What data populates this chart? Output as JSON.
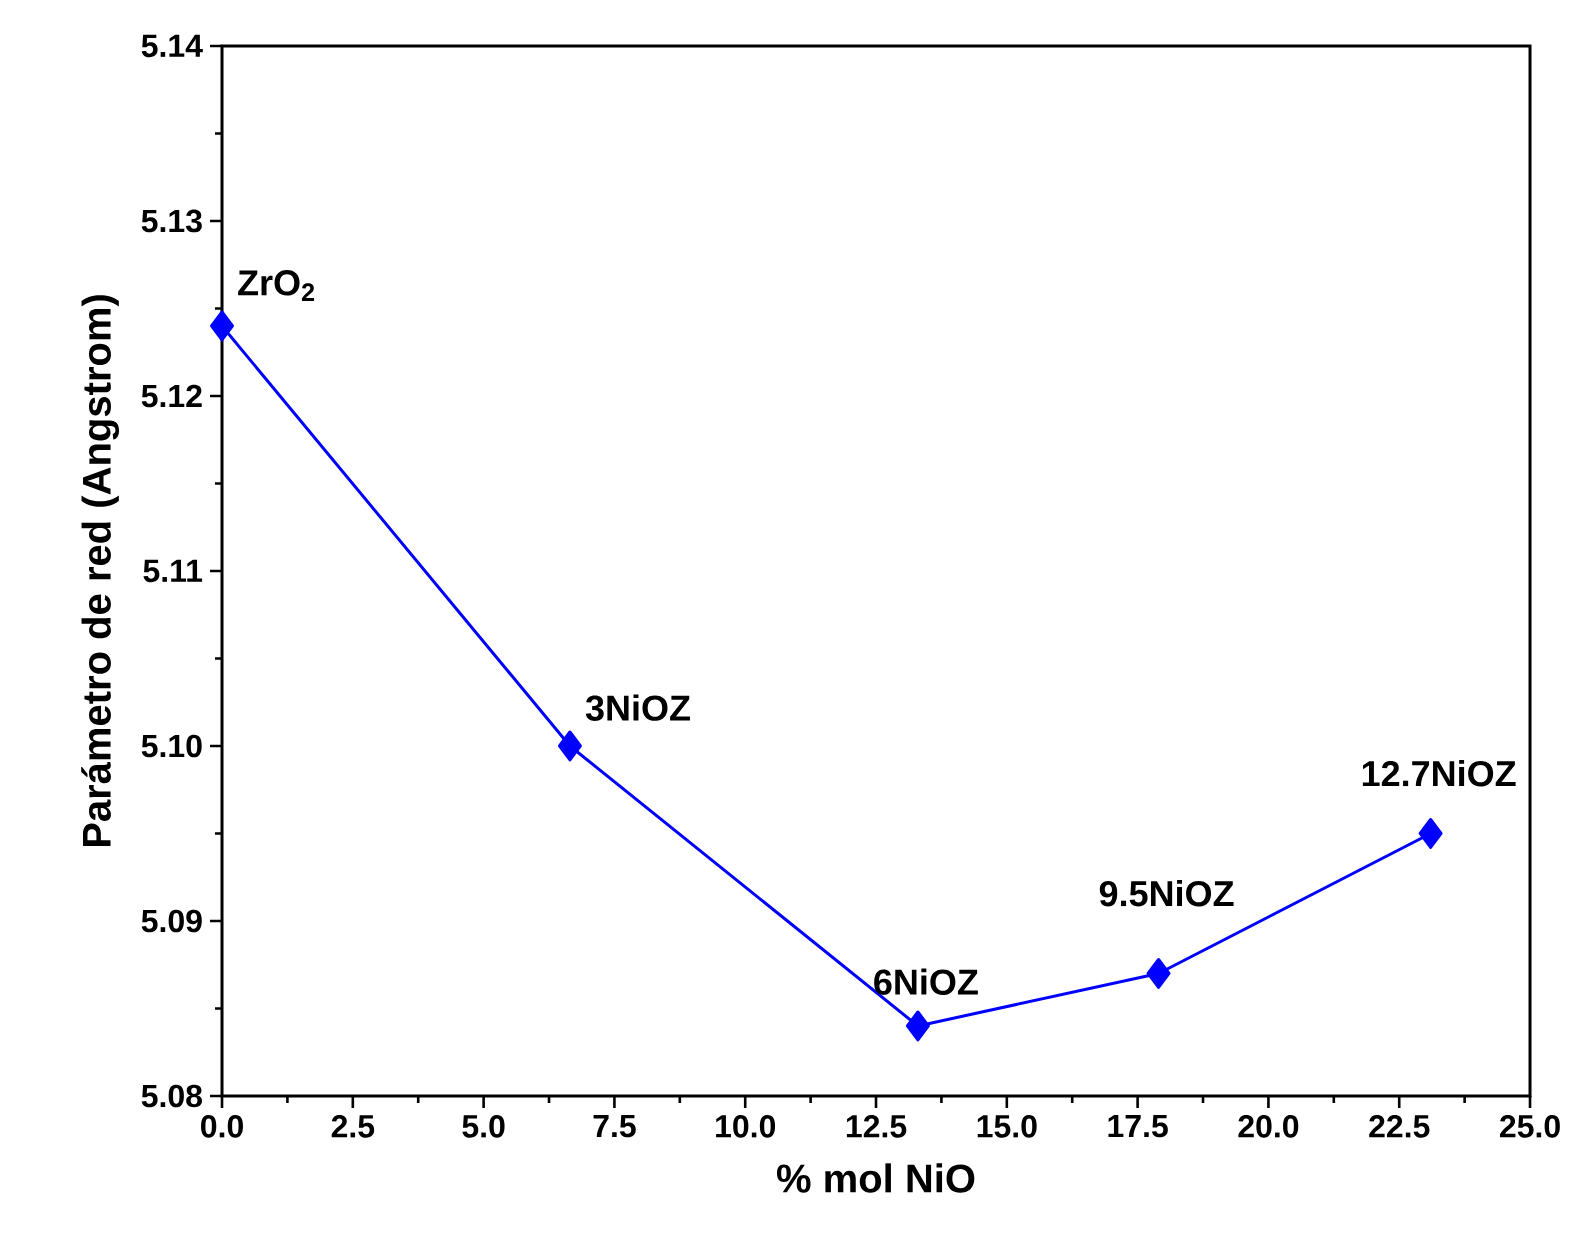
{
  "chart_data": {
    "type": "line",
    "xlabel": "% mol NiO",
    "ylabel": "Parámetro de red (Angstrom)",
    "x": [
      0,
      6.65,
      13.3,
      17.9,
      23.1
    ],
    "series": [
      {
        "color": "#0000ff",
        "values": [
          5.124,
          5.1,
          5.084,
          5.087,
          5.095
        ]
      }
    ],
    "xlim": [
      0,
      25
    ],
    "ylim": [
      5.08,
      5.14
    ],
    "xticks": [
      {
        "value": 0,
        "label": "0.0"
      },
      {
        "value": 2.5,
        "label": "2.5"
      },
      {
        "value": 5,
        "label": "5.0"
      },
      {
        "value": 7.5,
        "label": "7.5"
      },
      {
        "value": 10,
        "label": "10.0"
      },
      {
        "value": 12.5,
        "label": "12.5"
      },
      {
        "value": 15,
        "label": "15.0"
      },
      {
        "value": 17.5,
        "label": "17.5"
      },
      {
        "value": 20,
        "label": "20.0"
      },
      {
        "value": 22.5,
        "label": "22.5"
      },
      {
        "value": 25,
        "label": "25.0"
      }
    ],
    "yticks": [
      {
        "value": 5.08,
        "label": "5.08"
      },
      {
        "value": 5.09,
        "label": "5.09"
      },
      {
        "value": 5.1,
        "label": "5.10"
      },
      {
        "value": 5.11,
        "label": "5.11"
      },
      {
        "value": 5.12,
        "label": "5.12"
      },
      {
        "value": 5.13,
        "label": "5.13"
      },
      {
        "value": 5.14,
        "label": "5.14"
      }
    ],
    "annotations": [
      {
        "text": "ZrO$_{2}$",
        "x": 0,
        "y": 5.124
      },
      {
        "text": "3NiOZ",
        "x": 6.65,
        "y": 5.1
      },
      {
        "text": "6NiOZ",
        "x": 13.3,
        "y": 5.084
      },
      {
        "text": "9.5NiOZ",
        "x": 17.9,
        "y": 5.087
      },
      {
        "text": "12.7NiOZ",
        "x": 23.1,
        "y": 5.095
      }
    ],
    "marker": "diamond",
    "line_style": "solid"
  }
}
